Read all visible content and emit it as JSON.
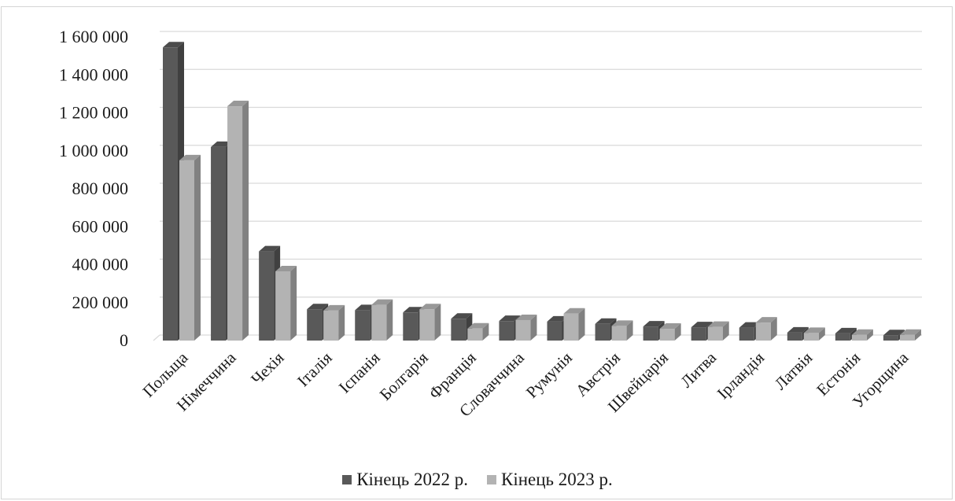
{
  "chart_data": {
    "type": "bar",
    "title": "",
    "xlabel": "",
    "ylabel": "",
    "ylim": [
      0,
      1600000
    ],
    "y_ticks": [
      0,
      200000,
      400000,
      600000,
      800000,
      1000000,
      1200000,
      1400000,
      1600000
    ],
    "y_tick_labels": [
      "0",
      "200 000",
      "400 000",
      "600 000",
      "800 000",
      "1 000 000",
      "1 200 000",
      "1 400 000",
      "1 600 000"
    ],
    "grid": true,
    "legend_position": "bottom",
    "style": "3d-clustered-column",
    "categories": [
      "Польща",
      "Німеччина",
      "Чехія",
      "Італія",
      "Іспанія",
      "Болгарія",
      "Франція",
      "Словаччина",
      "Румунія",
      "Австрія",
      "Швейцарія",
      "Литва",
      "Ірландія",
      "Латвія",
      "Естонія",
      "Угорщина"
    ],
    "series": [
      {
        "name": "Кінець 2022 р.",
        "color": "#595959",
        "values": [
          1545000,
          1020000,
          470000,
          165000,
          160000,
          148000,
          115000,
          103000,
          100000,
          88000,
          74000,
          70000,
          68000,
          42000,
          38000,
          28000
        ]
      },
      {
        "name": "Кінець 2023 р.",
        "color": "#b3b3b3",
        "values": [
          950000,
          1235000,
          365000,
          158000,
          188000,
          165000,
          63000,
          108000,
          142000,
          77000,
          62000,
          72000,
          95000,
          40000,
          30000,
          30000
        ]
      }
    ]
  }
}
